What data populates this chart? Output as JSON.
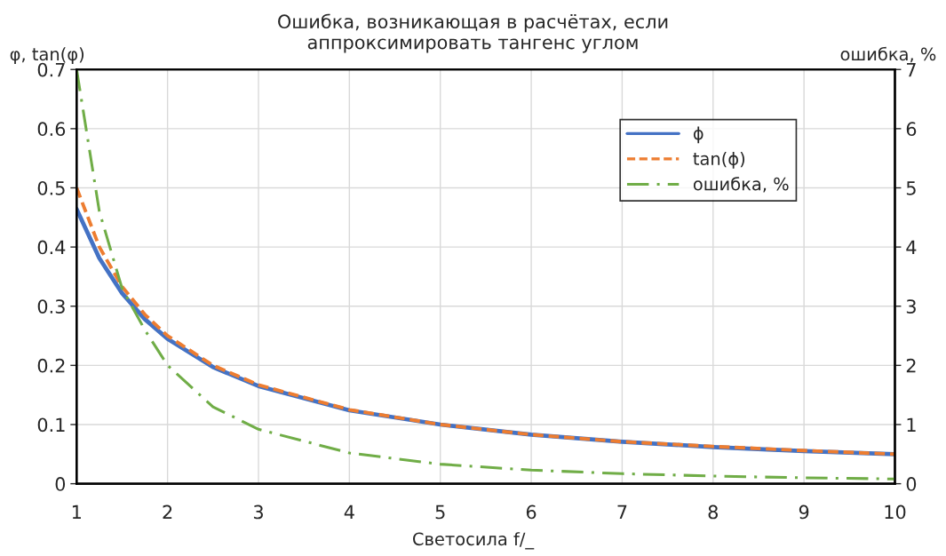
{
  "chart_data": {
    "type": "line",
    "title": "Ошибка, возникающая в расчётах, если\nаппроксимировать тангенс углом",
    "xlabel": "Светосила f/_",
    "ylabel": "φ, tan(φ)",
    "y2label": "ошибка, %",
    "x": [
      1,
      1.25,
      1.5,
      1.75,
      2,
      2.5,
      3,
      4,
      5,
      6,
      7,
      8,
      9,
      10
    ],
    "series": [
      {
        "name": "ϕ",
        "color": "#4472c4",
        "line_style": "solid",
        "values": [
          0.464,
          0.381,
          0.322,
          0.278,
          0.245,
          0.197,
          0.165,
          0.124,
          0.1,
          0.083,
          0.071,
          0.062,
          0.055,
          0.05
        ]
      },
      {
        "name": "tan(ϕ)",
        "color": "#ed7d31",
        "line_style": "dashed",
        "values": [
          0.5,
          0.4,
          0.333,
          0.286,
          0.25,
          0.2,
          0.167,
          0.125,
          0.1,
          0.083,
          0.071,
          0.063,
          0.056,
          0.05
        ]
      },
      {
        "name": "ошибка, %",
        "color": "#70ad47",
        "line_style": "dashdot",
        "axis": "y2",
        "values": [
          7.0,
          4.6,
          3.3,
          2.6,
          2.0,
          1.3,
          0.92,
          0.52,
          0.33,
          0.23,
          0.17,
          0.13,
          0.1,
          0.08
        ]
      }
    ],
    "xlim": [
      1,
      10
    ],
    "xticks": [
      1,
      2,
      3,
      4,
      5,
      6,
      7,
      8,
      9,
      10
    ],
    "ylim": [
      0,
      0.7
    ],
    "yticks": [
      0,
      0.1,
      0.2,
      0.3,
      0.4,
      0.5,
      0.6,
      0.7
    ],
    "y2lim": [
      0,
      7
    ],
    "y2ticks": [
      0,
      1,
      2,
      3,
      4,
      5,
      6,
      7
    ],
    "grid": true,
    "legend": "top right",
    "marker": "none"
  }
}
